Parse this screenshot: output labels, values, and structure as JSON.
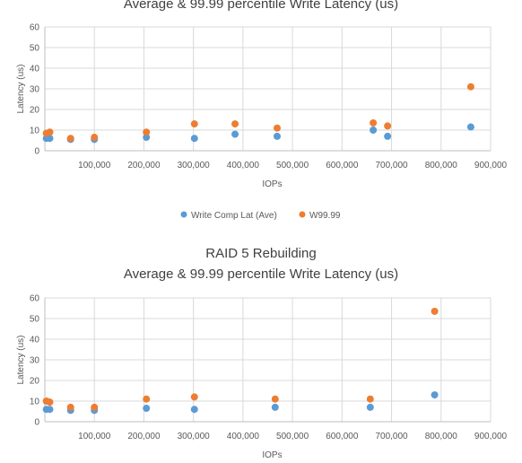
{
  "chart_data": [
    {
      "type": "scatter",
      "title": "Average & 99.99 percentile Write Latency (us)",
      "subtitle": "",
      "xlabel": "IOPs",
      "ylabel": "Latency (us)",
      "xlim": [
        0,
        900000
      ],
      "ylim": [
        0,
        60
      ],
      "xticks": [
        "100,000",
        "200,000",
        "300,000",
        "400,000",
        "500,000",
        "600,000",
        "700,000",
        "800,000",
        "900,000"
      ],
      "yticks": [
        "0",
        "10",
        "20",
        "30",
        "40",
        "50",
        "60"
      ],
      "grid": true,
      "legend_position": "bottom",
      "series": [
        {
          "name": "Write Comp Lat (Ave)",
          "color": "#5B9BD5",
          "points": [
            [
              3000,
              6
            ],
            [
              10000,
              6
            ],
            [
              52000,
              5.5
            ],
            [
              100000,
              5.5
            ],
            [
              205000,
              6.5
            ],
            [
              302000,
              6
            ],
            [
              384000,
              8
            ],
            [
              469000,
              7
            ],
            [
              663000,
              10
            ],
            [
              692000,
              7
            ],
            [
              860000,
              11.5
            ]
          ]
        },
        {
          "name": "W99.99",
          "color": "#ED7D31",
          "points": [
            [
              3000,
              8.5
            ],
            [
              10000,
              9
            ],
            [
              52000,
              6
            ],
            [
              100000,
              6.5
            ],
            [
              205000,
              9
            ],
            [
              302000,
              13
            ],
            [
              384000,
              13
            ],
            [
              469000,
              11
            ],
            [
              663000,
              13.5
            ],
            [
              692000,
              12
            ],
            [
              860000,
              31
            ]
          ]
        }
      ]
    },
    {
      "type": "scatter",
      "title": "RAID 5 Rebuilding",
      "subtitle": "Average & 99.99 percentile Write Latency (us)",
      "xlabel": "IOPs",
      "ylabel": "Latency (us)",
      "xlim": [
        0,
        900000
      ],
      "ylim": [
        0,
        60
      ],
      "xticks": [
        "100,000",
        "200,000",
        "300,000",
        "400,000",
        "500,000",
        "600,000",
        "700,000",
        "800,000",
        "900,000"
      ],
      "yticks": [
        "0",
        "10",
        "20",
        "30",
        "40",
        "50",
        "60"
      ],
      "grid": true,
      "legend_position": "bottom",
      "series": [
        {
          "name": "Write Comp Lat (Ave)",
          "color": "#5B9BD5",
          "points": [
            [
              3000,
              6
            ],
            [
              10000,
              6
            ],
            [
              52000,
              5.5
            ],
            [
              100000,
              5.5
            ],
            [
              205000,
              6.5
            ],
            [
              302000,
              6
            ],
            [
              465000,
              7
            ],
            [
              657000,
              7
            ],
            [
              787000,
              13
            ]
          ]
        },
        {
          "name": "W99.99",
          "color": "#ED7D31",
          "points": [
            [
              3000,
              10
            ],
            [
              10000,
              9.5
            ],
            [
              52000,
              7
            ],
            [
              100000,
              7
            ],
            [
              205000,
              11
            ],
            [
              302000,
              12
            ],
            [
              465000,
              11
            ],
            [
              657000,
              11
            ],
            [
              787000,
              53.5
            ]
          ]
        }
      ]
    }
  ]
}
